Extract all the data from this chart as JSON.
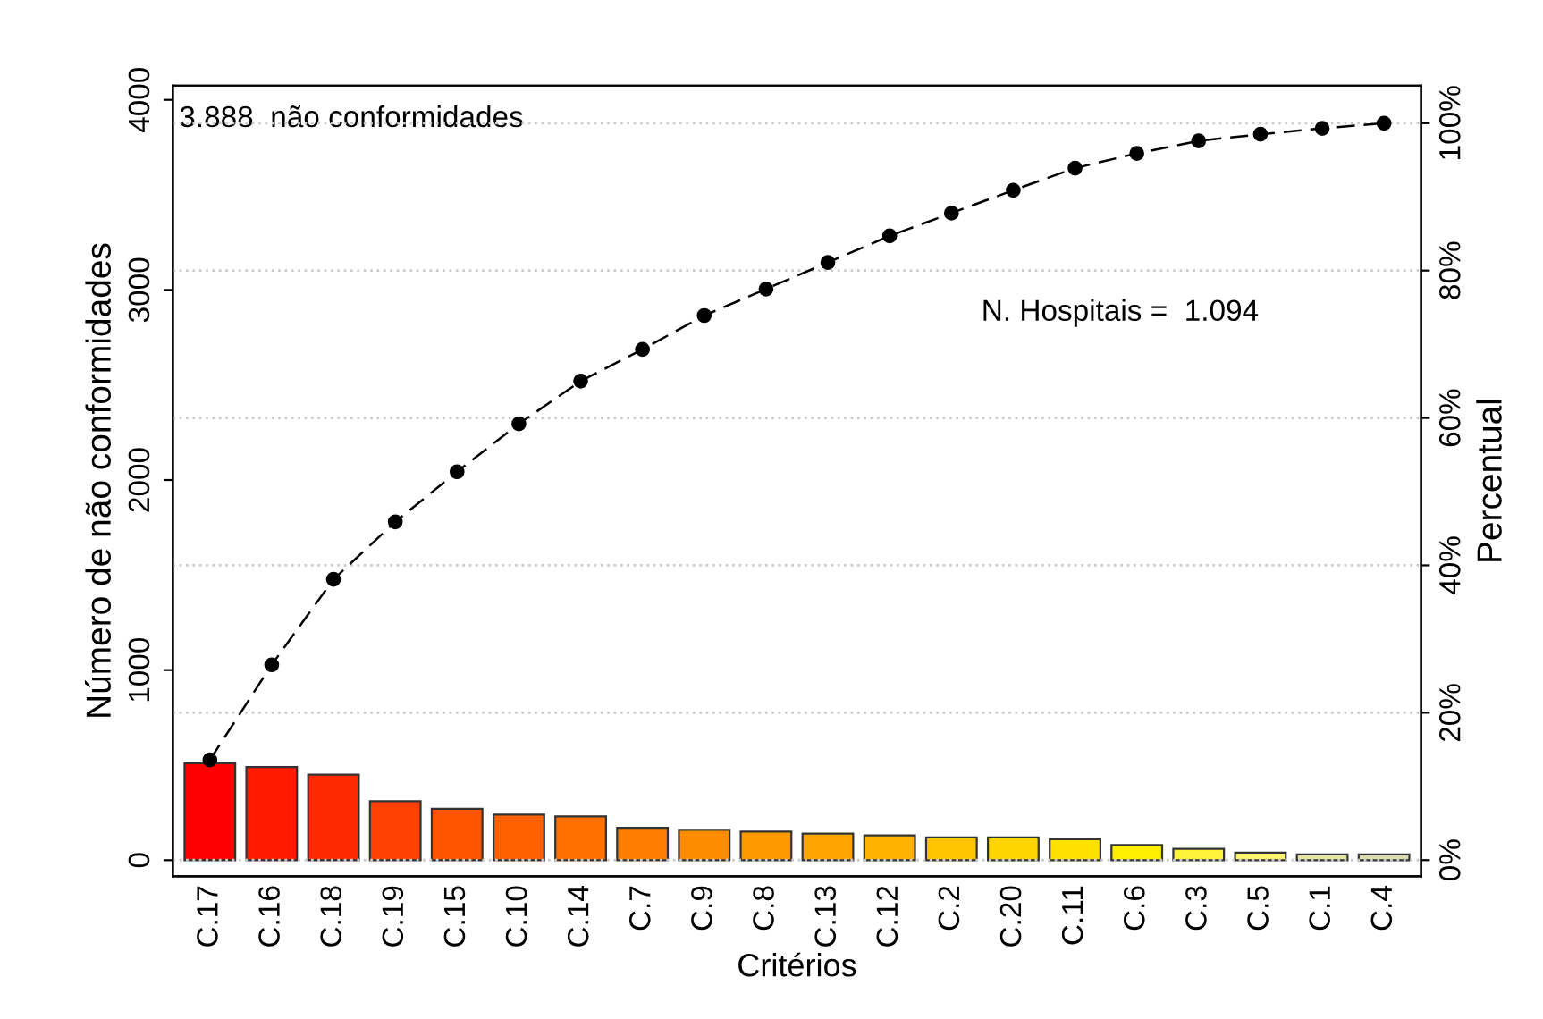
{
  "chart_data": {
    "type": "bar",
    "xlabel": "Critérios",
    "ylabel": "Número de não conformidades",
    "y2label": "Percentual",
    "categories": [
      "C.17",
      "C.16",
      "C.18",
      "C.19",
      "C.15",
      "C.10",
      "C.14",
      "C.7",
      "C.9",
      "C.8",
      "C.13",
      "C.12",
      "C.2",
      "C.20",
      "C.11",
      "C.6",
      "C.3",
      "C.5",
      "C.1",
      "C.4"
    ],
    "series": [
      {
        "colors": [
          "#ff0000",
          "#ff1a00",
          "#ff2a00",
          "#ff4000",
          "#ff5500",
          "#ff6000",
          "#ff7000",
          "#ff8000",
          "#ff8c00",
          "#ff9900",
          "#ffa500",
          "#ffb300",
          "#ffc600",
          "#ffd400",
          "#ffe000",
          "#ffee00",
          "#fff23a",
          "#fff56b",
          "#e6e6a0",
          "#dcdcb0"
        ],
        "values": [
          510,
          490,
          450,
          310,
          270,
          240,
          230,
          170,
          160,
          150,
          140,
          130,
          120,
          120,
          110,
          80,
          60,
          40,
          30,
          30
        ]
      },
      {
        "type": "line",
        "axis": "y2",
        "color": "#000000",
        "marker": "circle",
        "line_style": "dashed",
        "values": [
          13.6,
          26.5,
          38.1,
          45.9,
          52.7,
          59.2,
          65.0,
          69.3,
          73.9,
          77.5,
          81.1,
          84.7,
          87.8,
          90.9,
          93.9,
          95.9,
          97.6,
          98.5,
          99.3,
          100
        ]
      }
    ],
    "ylim": [
      -85,
      4075
    ],
    "yticks": [
      0,
      1000,
      2000,
      3000,
      4000
    ],
    "y2lim": [
      -2.2,
      105.1
    ],
    "y2ticks": [
      {
        "value": 0,
        "label": "0%"
      },
      {
        "value": 20,
        "label": "20%"
      },
      {
        "value": 40,
        "label": "40%"
      },
      {
        "value": 60,
        "label": "60%"
      },
      {
        "value": 80,
        "label": "80%"
      },
      {
        "value": 100,
        "label": "100%"
      }
    ],
    "grid": "y2",
    "annotations": [
      "3.888  não conformidades",
      "N. Hospitais =  1.094"
    ]
  }
}
